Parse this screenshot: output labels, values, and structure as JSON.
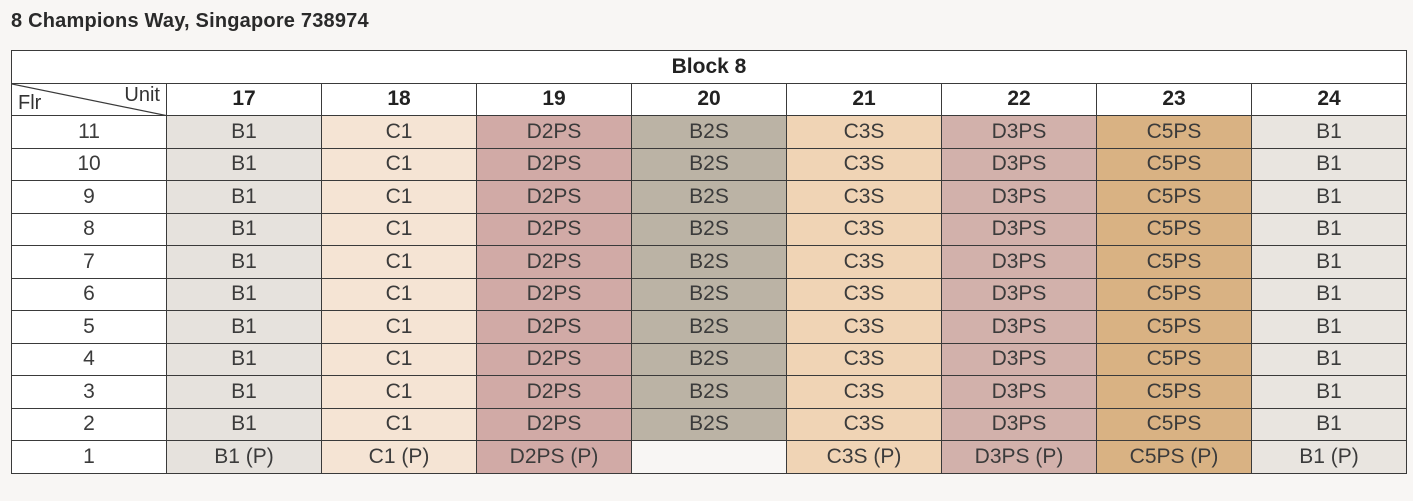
{
  "address": "8 Champions Way, Singapore 738974",
  "block_title": "Block 8",
  "corner": {
    "unit_label": "Unit",
    "floor_label": "Flr"
  },
  "units": [
    "17",
    "18",
    "19",
    "20",
    "21",
    "22",
    "23",
    "24"
  ],
  "unit_colors": {
    "17": "#e6e2dd",
    "18": "#f5e4d4",
    "19": "#d1aaa6",
    "20": "#bbb3a5",
    "21": "#f0d4b5",
    "22": "#d2b1ab",
    "23": "#d9b283",
    "24": "#e9e5e0"
  },
  "rows": [
    {
      "floor": "11",
      "cells": [
        "B1",
        "C1",
        "D2PS",
        "B2S",
        "C3S",
        "D3PS",
        "C5PS",
        "B1"
      ]
    },
    {
      "floor": "10",
      "cells": [
        "B1",
        "C1",
        "D2PS",
        "B2S",
        "C3S",
        "D3PS",
        "C5PS",
        "B1"
      ]
    },
    {
      "floor": "9",
      "cells": [
        "B1",
        "C1",
        "D2PS",
        "B2S",
        "C3S",
        "D3PS",
        "C5PS",
        "B1"
      ]
    },
    {
      "floor": "8",
      "cells": [
        "B1",
        "C1",
        "D2PS",
        "B2S",
        "C3S",
        "D3PS",
        "C5PS",
        "B1"
      ]
    },
    {
      "floor": "7",
      "cells": [
        "B1",
        "C1",
        "D2PS",
        "B2S",
        "C3S",
        "D3PS",
        "C5PS",
        "B1"
      ]
    },
    {
      "floor": "6",
      "cells": [
        "B1",
        "C1",
        "D2PS",
        "B2S",
        "C3S",
        "D3PS",
        "C5PS",
        "B1"
      ]
    },
    {
      "floor": "5",
      "cells": [
        "B1",
        "C1",
        "D2PS",
        "B2S",
        "C3S",
        "D3PS",
        "C5PS",
        "B1"
      ]
    },
    {
      "floor": "4",
      "cells": [
        "B1",
        "C1",
        "D2PS",
        "B2S",
        "C3S",
        "D3PS",
        "C5PS",
        "B1"
      ]
    },
    {
      "floor": "3",
      "cells": [
        "B1",
        "C1",
        "D2PS",
        "B2S",
        "C3S",
        "D3PS",
        "C5PS",
        "B1"
      ]
    },
    {
      "floor": "2",
      "cells": [
        "B1",
        "C1",
        "D2PS",
        "B2S",
        "C3S",
        "D3PS",
        "C5PS",
        "B1"
      ]
    },
    {
      "floor": "1",
      "cells": [
        "B1 (P)",
        "C1 (P)",
        "D2PS (P)",
        null,
        "C3S (P)",
        "D3PS (P)",
        "C5PS (P)",
        "B1 (P)"
      ]
    }
  ]
}
